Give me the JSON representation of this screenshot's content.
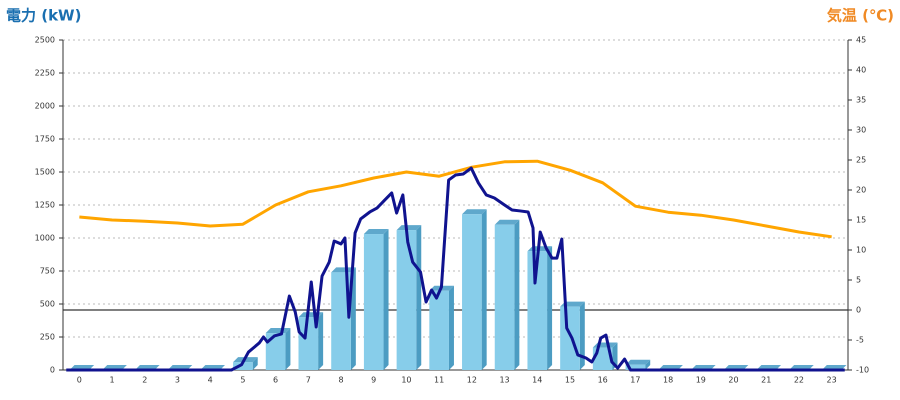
{
  "chart_data": {
    "type": "bar",
    "y_label": "電力 (kW)",
    "y2_label": "気温 (℃)",
    "y_label_color": "#1a6fb0",
    "y2_label_color": "#f08a24",
    "categories": [
      "0",
      "1",
      "2",
      "3",
      "4",
      "5",
      "6",
      "7",
      "8",
      "9",
      "10",
      "11",
      "12",
      "13",
      "14",
      "15",
      "16",
      "17",
      "18",
      "19",
      "20",
      "21",
      "22",
      "23"
    ],
    "ylim": [
      0,
      2500
    ],
    "yticks": [
      0,
      250,
      500,
      750,
      1000,
      1250,
      1500,
      1750,
      2000,
      2250,
      2500
    ],
    "y2lim": [
      -10,
      45
    ],
    "y2ticks": [
      -10,
      -5,
      0,
      5,
      10,
      15,
      20,
      25,
      30,
      35,
      40,
      45
    ],
    "grid": true,
    "series": [
      {
        "type": "bar",
        "color": "#87cdea",
        "values": [
          0,
          0,
          0,
          0,
          0,
          60,
          280,
          400,
          740,
          1030,
          1060,
          600,
          1180,
          1100,
          900,
          480,
          170,
          40,
          0,
          0,
          0,
          0,
          0,
          0
        ]
      },
      {
        "type": "line",
        "axis": "y2",
        "color": "#ffa500",
        "values": [
          15.5,
          15,
          14.8,
          14.5,
          14,
          14.3,
          17.5,
          19.7,
          20.7,
          22,
          23,
          22.3,
          23.8,
          24.7,
          24.8,
          23.3,
          21.2,
          17.3,
          16.3,
          15.8,
          15,
          14,
          13,
          12.2
        ]
      },
      {
        "type": "line",
        "color": "#10138f",
        "x": [
          -0.4,
          4.65,
          4.96,
          5.17,
          5.5,
          5.63,
          5.75,
          5.96,
          6.18,
          6.42,
          6.6,
          6.72,
          6.9,
          7.09,
          7.24,
          7.42,
          7.64,
          7.79,
          8.0,
          8.12,
          8.24,
          8.43,
          8.6,
          8.88,
          9.1,
          9.34,
          9.55,
          9.7,
          9.89,
          10.04,
          10.19,
          10.43,
          10.6,
          10.77,
          10.92,
          11.07,
          11.29,
          11.5,
          11.74,
          11.98,
          12.2,
          12.44,
          12.69,
          13.0,
          13.23,
          13.48,
          13.72,
          13.87,
          13.93,
          14.09,
          14.27,
          14.45,
          14.6,
          14.75,
          14.9,
          15.06,
          15.24,
          15.49,
          15.67,
          15.82,
          15.94,
          16.1,
          16.28,
          16.46,
          16.67,
          16.85,
          23.4
        ],
        "values": [
          0,
          0,
          40,
          136,
          205,
          250,
          212,
          258,
          273,
          560,
          440,
          288,
          242,
          667,
          326,
          712,
          818,
          977,
          955,
          1000,
          400,
          1038,
          1144,
          1197,
          1227,
          1288,
          1341,
          1189,
          1326,
          970,
          818,
          742,
          515,
          606,
          545,
          629,
          1439,
          1477,
          1485,
          1530,
          1417,
          1326,
          1303,
          1250,
          1212,
          1205,
          1197,
          1076,
          659,
          1045,
          924,
          848,
          848,
          992,
          318,
          242,
          114,
          91,
          61,
          129,
          242,
          265,
          61,
          15,
          83,
          0,
          0
        ]
      }
    ]
  }
}
